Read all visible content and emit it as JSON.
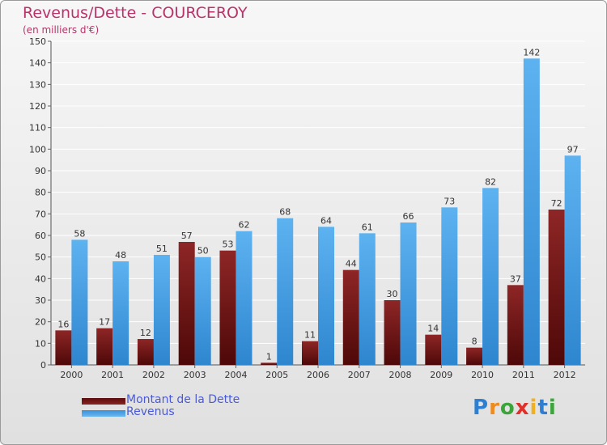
{
  "header": {
    "title": "Revenus/Dette - COURCEROY",
    "subtitle": "(en milliers d'€)"
  },
  "legend": {
    "items": [
      {
        "label": "Montant de la Dette",
        "color": "#7a1414"
      },
      {
        "label": "Revenus",
        "color": "#4aa3e6"
      }
    ]
  },
  "logo": {
    "letters": [
      "P",
      "r",
      "o",
      "x",
      "i",
      "t",
      "i"
    ],
    "colors": [
      "#2e7fd1",
      "#f08a1c",
      "#3aa63a",
      "#e0302a",
      "#f0b020",
      "#2e7fd1",
      "#3aa63a"
    ]
  },
  "chart_data": {
    "type": "bar",
    "categories": [
      "2000",
      "2001",
      "2002",
      "2003",
      "2004",
      "2005",
      "2006",
      "2007",
      "2008",
      "2009",
      "2010",
      "2011",
      "2012"
    ],
    "series": [
      {
        "name": "Montant de la Dette",
        "color": "#7a1414",
        "values": [
          16,
          17,
          12,
          57,
          53,
          1,
          11,
          44,
          30,
          14,
          8,
          37,
          72
        ]
      },
      {
        "name": "Revenus",
        "color": "#4aa3e6",
        "values": [
          58,
          48,
          51,
          50,
          62,
          68,
          64,
          61,
          66,
          73,
          82,
          142,
          97
        ]
      }
    ],
    "yticks": [
      0,
      10,
      20,
      30,
      40,
      50,
      60,
      70,
      80,
      90,
      100,
      110,
      120,
      130,
      140,
      150
    ],
    "ylim": [
      0,
      150
    ],
    "grid": true,
    "legend_position": "bottom-left"
  }
}
